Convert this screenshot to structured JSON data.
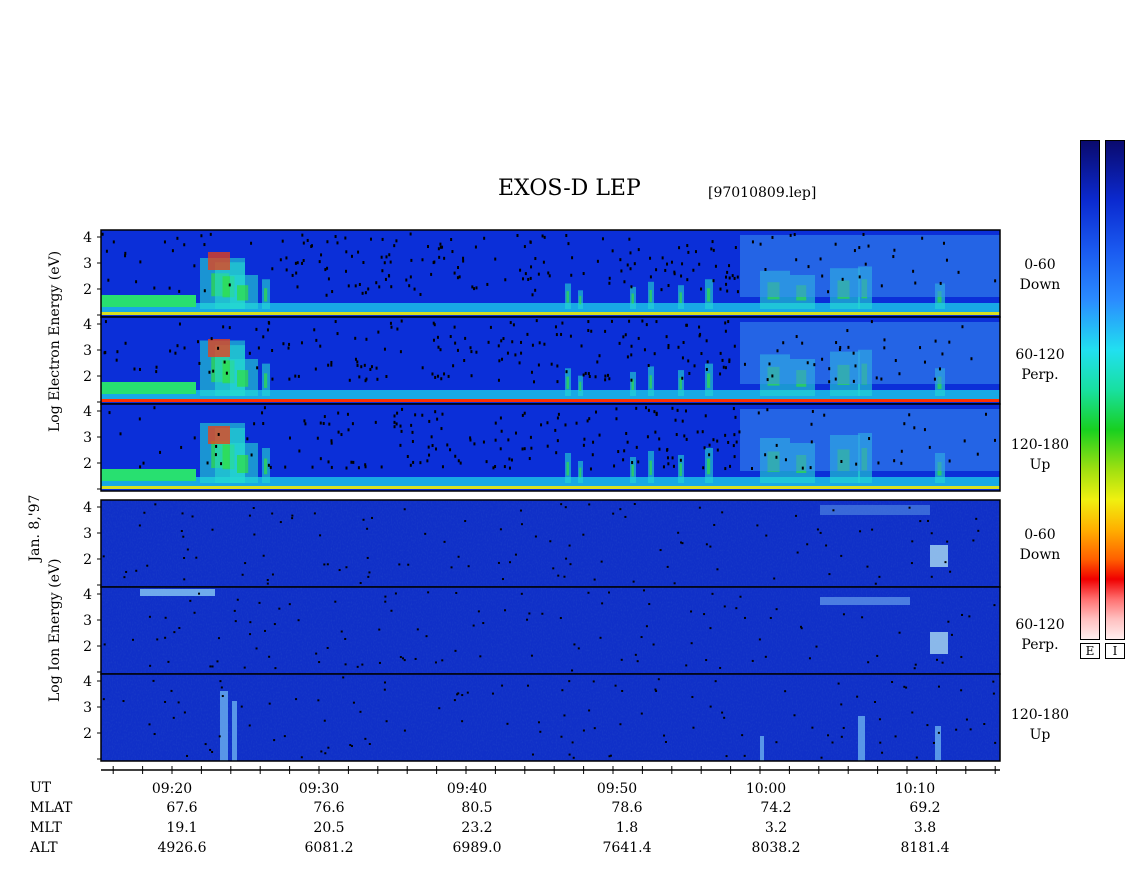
{
  "title": "EXOS-D LEP",
  "filename": "[97010809.lep]",
  "date_label": "Jan. 8,'97",
  "chart_data": {
    "type": "heatmap",
    "x_axis": {
      "label": "UT",
      "ticks": [
        "09:20",
        "09:30",
        "09:40",
        "09:50",
        "10:00",
        "10:10"
      ]
    },
    "y_ticks": [
      "4",
      "3",
      "2"
    ],
    "electron_axis_label": [
      "Log",
      "Electron",
      "Energy",
      "(eV)"
    ],
    "ion_axis_label": [
      "Log",
      "Ion",
      "Energy",
      "(eV)"
    ],
    "electron_panels": [
      {
        "name": "0-60 Down",
        "pitch": "0-60",
        "direction": "Down"
      },
      {
        "name": "60-120 Perp.",
        "pitch": "60-120",
        "direction": "Perp."
      },
      {
        "name": "120-180 Up",
        "pitch": "120-180",
        "direction": "Up"
      }
    ],
    "ion_panels": [
      {
        "name": "0-60 Down",
        "pitch": "0-60",
        "direction": "Down"
      },
      {
        "name": "60-120 Perp.",
        "pitch": "60-120",
        "direction": "Perp."
      },
      {
        "name": "120-180 Up",
        "pitch": "120-180",
        "direction": "Up"
      }
    ],
    "colorbars": [
      "E",
      "I"
    ],
    "colorbar_colors": [
      "#0a0a6e",
      "#1a5af0",
      "#21e0f0",
      "#18d020",
      "#f0f010",
      "#ff6000",
      "#f00000",
      "#ffeeee"
    ],
    "ephemeris": [
      {
        "label": "MLAT",
        "values": [
          "67.6",
          "76.6",
          "80.5",
          "78.6",
          "74.2",
          "69.2"
        ]
      },
      {
        "label": "MLT",
        "values": [
          "19.1",
          "20.5",
          "23.2",
          "1.8",
          "3.2",
          "3.8"
        ]
      },
      {
        "label": "ALT",
        "values": [
          "4926.6",
          "6081.2",
          "6989.0",
          "7641.4",
          "8038.2",
          "8181.4"
        ]
      }
    ]
  }
}
